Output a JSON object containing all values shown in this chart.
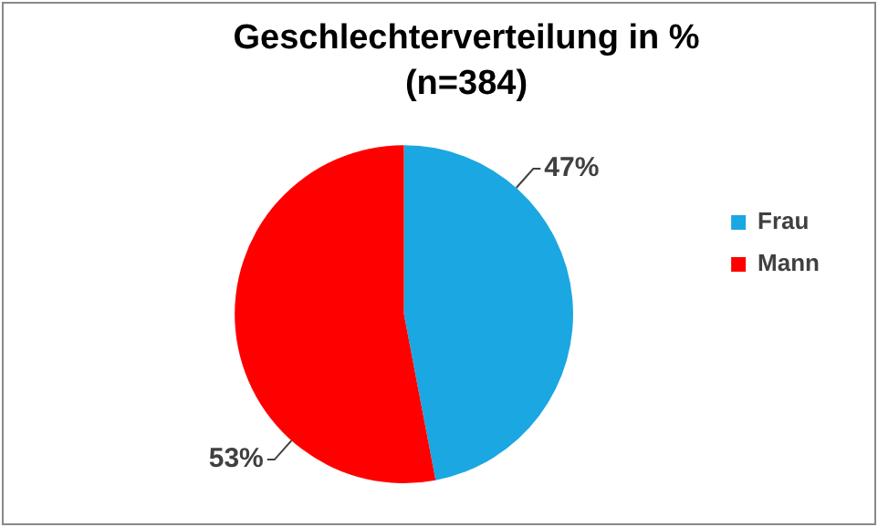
{
  "chart_data": {
    "type": "pie",
    "title": "Geschlechterverteilung in %",
    "subtitle": "(n=384)",
    "categories": [
      "Frau",
      "Mann"
    ],
    "values": [
      47,
      53
    ],
    "colors": [
      "#1aa7e2",
      "#ff0000"
    ],
    "value_labels": [
      "47%",
      "53%"
    ],
    "legend": "right"
  }
}
